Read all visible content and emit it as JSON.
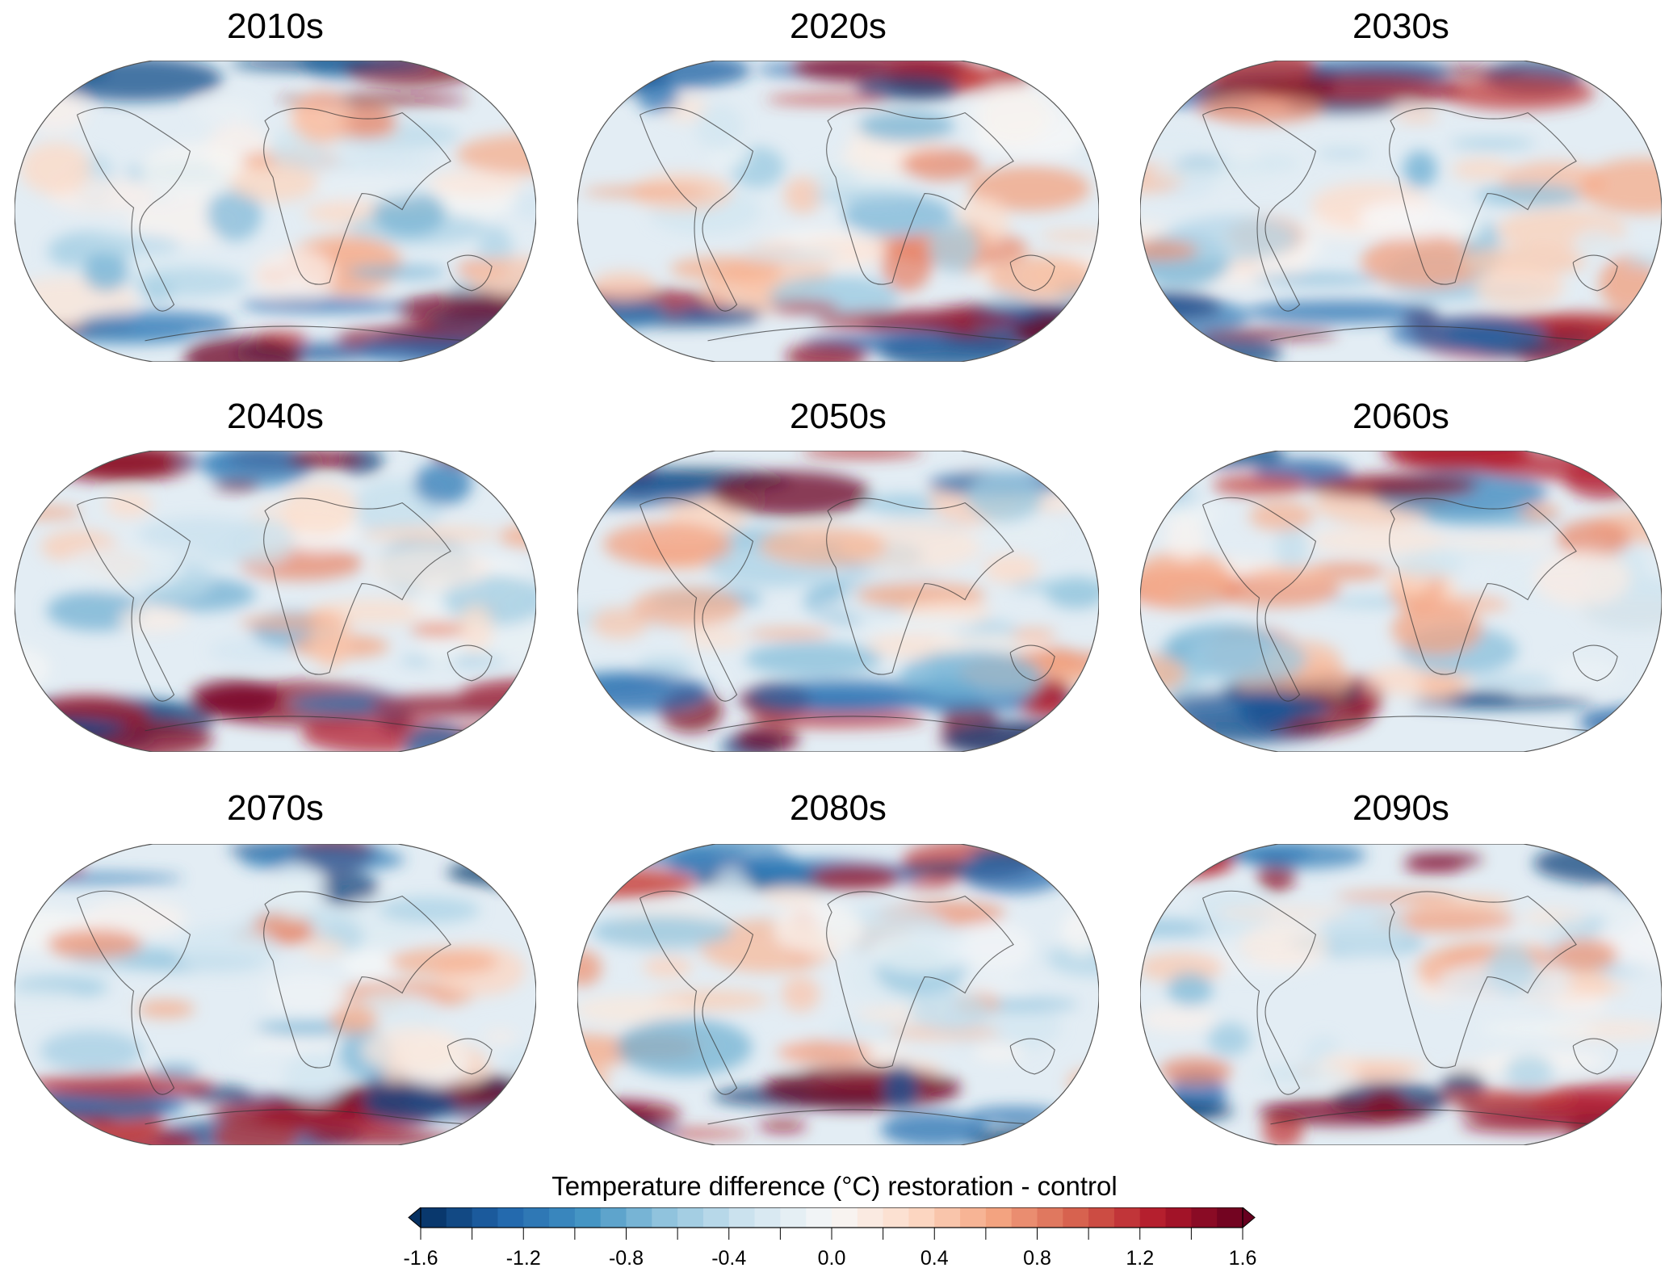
{
  "panels": [
    {
      "title": "2010s"
    },
    {
      "title": "2020s"
    },
    {
      "title": "2030s"
    },
    {
      "title": "2040s"
    },
    {
      "title": "2050s"
    },
    {
      "title": "2060s"
    },
    {
      "title": "2070s"
    },
    {
      "title": "2080s"
    },
    {
      "title": "2090s"
    }
  ],
  "colorbar": {
    "title": "Temperature difference (°C) restoration - control",
    "range": [
      -1.6,
      1.6
    ],
    "step": 0.1,
    "extend": "both",
    "ticks": [
      "-1.6",
      "-1.2",
      "-0.8",
      "-0.4",
      "0.0",
      "0.4",
      "0.8",
      "1.2",
      "1.6"
    ],
    "colormap": [
      "#053061",
      "#2166ac",
      "#4393c3",
      "#92c5de",
      "#d1e5f0",
      "#f7f7f7",
      "#fddbc7",
      "#f4a582",
      "#d6604d",
      "#b2182b",
      "#67001f"
    ]
  }
}
